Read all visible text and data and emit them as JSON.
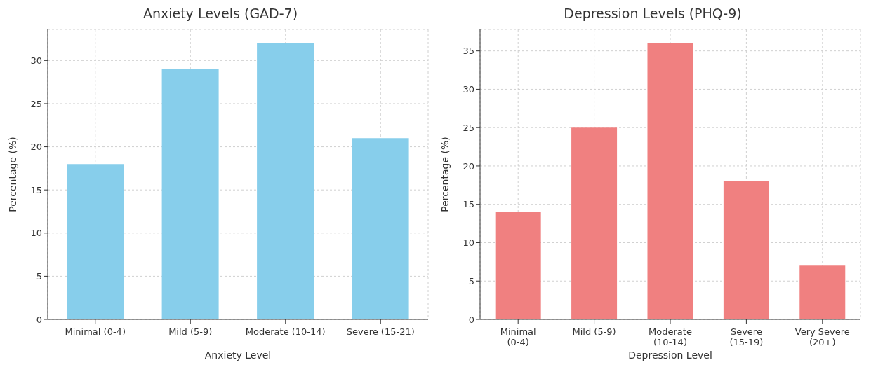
{
  "chart_data": [
    {
      "type": "bar",
      "title": "Anxiety Levels (GAD-7)",
      "xlabel": "Anxiety Level",
      "ylabel": "Percentage (%)",
      "categories": [
        "Minimal (0-4)",
        "Mild (5-9)",
        "Moderate (10-14)",
        "Severe (15-21)"
      ],
      "values": [
        18,
        29,
        32,
        21
      ],
      "color": "#87ceeb",
      "ylim": [
        0,
        33.6
      ],
      "yticks": [
        0,
        5,
        10,
        15,
        20,
        25,
        30
      ],
      "grid": true
    },
    {
      "type": "bar",
      "title": "Depression Levels (PHQ-9)",
      "xlabel": "Depression Level",
      "ylabel": "Percentage (%)",
      "categories": [
        "Minimal (0-4)",
        "Mild (5-9)",
        "Moderate (10-14)",
        "Severe (15-19)",
        "Very Severe (20+)"
      ],
      "values": [
        14,
        25,
        36,
        18,
        7
      ],
      "color": "#f08080",
      "ylim": [
        0,
        37.8
      ],
      "yticks": [
        0,
        5,
        10,
        15,
        20,
        25,
        30,
        35
      ],
      "grid": true
    }
  ]
}
